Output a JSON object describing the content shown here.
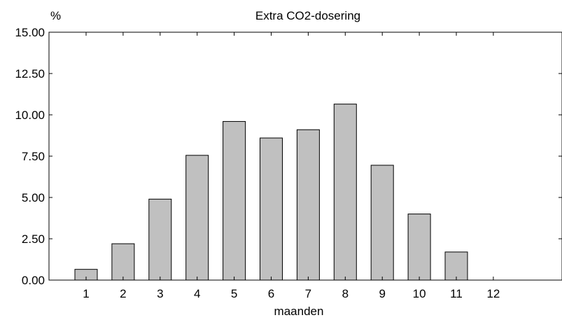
{
  "chart_data": {
    "type": "bar",
    "title": "Extra CO2-dosering",
    "ylabel": "%",
    "xlabel": "maanden",
    "ylim": [
      0,
      15
    ],
    "yticks": [
      "0.00",
      "2.50",
      "5.00",
      "7.50",
      "10.00",
      "12.50",
      "15.00"
    ],
    "categories": [
      "1",
      "2",
      "3",
      "4",
      "5",
      "6",
      "7",
      "8",
      "9",
      "10",
      "11",
      "12"
    ],
    "values": [
      0.65,
      2.2,
      4.9,
      7.55,
      9.6,
      8.6,
      9.1,
      10.65,
      6.95,
      4.0,
      1.7,
      0.0
    ],
    "grid": false,
    "bar_color": "#c0c0c0",
    "bar_edge_color": "#000000"
  }
}
